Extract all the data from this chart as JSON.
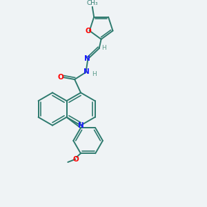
{
  "bg_color": "#eff3f5",
  "bond_color": "#2d7a6e",
  "N_color": "#1a1aff",
  "O_color": "#ff0000",
  "H_color": "#5a9a8a",
  "bond_lw": 1.4,
  "figsize": [
    3.0,
    3.0
  ],
  "dpi": 100,
  "xlim": [
    0,
    10
  ],
  "ylim": [
    0,
    10
  ]
}
